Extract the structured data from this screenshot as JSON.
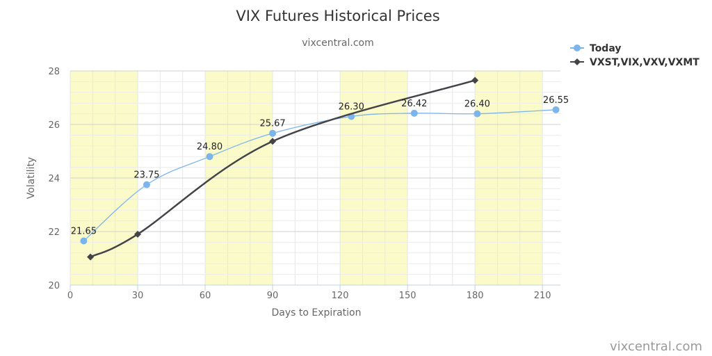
{
  "chart_data": {
    "type": "line",
    "title": "VIX Futures Historical Prices",
    "subtitle": "vixcentral.com",
    "xlabel": "Days to Expiration",
    "ylabel": "Volatility",
    "xlim": [
      0,
      218
    ],
    "ylim": [
      20,
      28
    ],
    "x_ticks": [
      0,
      30,
      60,
      90,
      120,
      150,
      180,
      210
    ],
    "y_ticks": [
      20,
      22,
      24,
      26,
      28
    ],
    "grid": true,
    "shaded_bands": [
      [
        0,
        30
      ],
      [
        60,
        90
      ],
      [
        120,
        150
      ],
      [
        180,
        210
      ]
    ],
    "legend_position": "top-right",
    "series": [
      {
        "name": "Today",
        "color": "#7cb5ec",
        "marker": "circle",
        "x": [
          6,
          34,
          62,
          90,
          125,
          153,
          181,
          216
        ],
        "y": [
          21.65,
          23.75,
          24.8,
          25.67,
          26.3,
          26.42,
          26.4,
          26.55
        ],
        "labels": [
          "21.65",
          "23.75",
          "24.80",
          "25.67",
          "26.30",
          "26.42",
          "26.40",
          "26.55"
        ]
      },
      {
        "name": "VXST,VIX,VXV,VXMT",
        "color": "#434348",
        "marker": "diamond",
        "x": [
          9,
          30,
          90,
          180
        ],
        "y": [
          21.05,
          21.9,
          25.37,
          27.65
        ],
        "labels": []
      }
    ]
  },
  "credit": "vixcentral.com"
}
